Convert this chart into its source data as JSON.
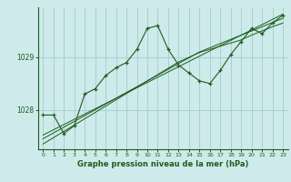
{
  "title": "",
  "xlabel": "Graphe pression niveau de la mer (hPa)",
  "ylabel": "",
  "bg_color": "#ceeaea",
  "grid_color": "#9ecfcf",
  "line_color": "#1e5c1e",
  "text_color": "#1e5c1e",
  "x": [
    0,
    1,
    2,
    3,
    4,
    5,
    6,
    7,
    8,
    9,
    10,
    11,
    12,
    13,
    14,
    15,
    16,
    17,
    18,
    19,
    20,
    21,
    22,
    23
  ],
  "y_main": [
    1027.9,
    1027.9,
    1027.55,
    1027.7,
    1028.3,
    1028.4,
    1028.65,
    1028.8,
    1028.9,
    1029.15,
    1029.55,
    1029.6,
    1029.15,
    1028.85,
    1028.7,
    1028.55,
    1028.5,
    1028.75,
    1029.05,
    1029.3,
    1029.55,
    1029.45,
    1029.65,
    1029.8
  ],
  "y_trend1": [
    1027.52,
    1027.62,
    1027.72,
    1027.82,
    1027.92,
    1028.02,
    1028.12,
    1028.22,
    1028.32,
    1028.42,
    1028.52,
    1028.62,
    1028.72,
    1028.82,
    1028.92,
    1029.02,
    1029.12,
    1029.22,
    1029.32,
    1029.42,
    1029.52,
    1029.62,
    1029.72,
    1029.82
  ],
  "y_trend2": [
    1027.45,
    1027.56,
    1027.67,
    1027.78,
    1027.89,
    1028.0,
    1028.11,
    1028.22,
    1028.33,
    1028.44,
    1028.55,
    1028.66,
    1028.77,
    1028.88,
    1028.99,
    1029.1,
    1029.18,
    1029.26,
    1029.34,
    1029.42,
    1029.5,
    1029.58,
    1029.66,
    1029.74
  ],
  "y_trend3": [
    1027.35,
    1027.47,
    1027.59,
    1027.71,
    1027.83,
    1027.95,
    1028.07,
    1028.19,
    1028.31,
    1028.43,
    1028.55,
    1028.67,
    1028.79,
    1028.91,
    1029.0,
    1029.09,
    1029.15,
    1029.21,
    1029.27,
    1029.33,
    1029.42,
    1029.5,
    1029.58,
    1029.65
  ],
  "yticks": [
    1028,
    1029
  ],
  "ylim": [
    1027.25,
    1029.95
  ],
  "xlim": [
    -0.5,
    23.5
  ],
  "xticks": [
    0,
    1,
    2,
    3,
    4,
    5,
    6,
    7,
    8,
    9,
    10,
    11,
    12,
    13,
    14,
    15,
    16,
    17,
    18,
    19,
    20,
    21,
    22,
    23
  ]
}
